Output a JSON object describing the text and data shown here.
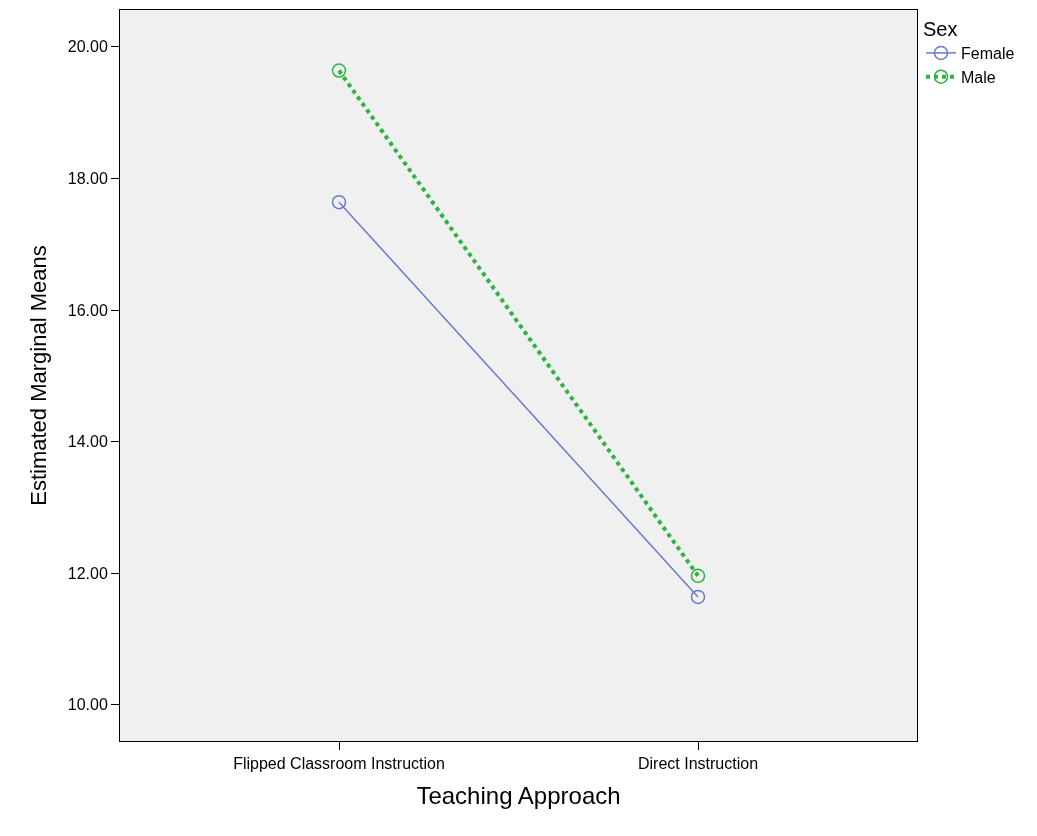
{
  "chart_data": {
    "type": "line",
    "xlabel": "Teaching Approach",
    "ylabel": "Estimated Marginal Means",
    "legend_title": "Sex",
    "categories": [
      "Flipped Classroom Instruction",
      "Direct Instruction"
    ],
    "series": [
      {
        "name": "Female",
        "color": "#6b79c9",
        "values": [
          17.64,
          11.64
        ],
        "line_style": "solid"
      },
      {
        "name": "Male",
        "color": "#2db43f",
        "values": [
          19.64,
          11.96
        ],
        "line_style": "dotted"
      }
    ],
    "ylim": [
      9.45,
      20.56
    ],
    "yticks": [
      {
        "value": 10,
        "label": "10.00"
      },
      {
        "value": 12,
        "label": "12.00"
      },
      {
        "value": 14,
        "label": "14.00"
      },
      {
        "value": 16,
        "label": "16.00"
      },
      {
        "value": 18,
        "label": "18.00"
      },
      {
        "value": 20,
        "label": "20.00"
      }
    ],
    "grid": false,
    "legend": "top right",
    "marker": "circle"
  }
}
